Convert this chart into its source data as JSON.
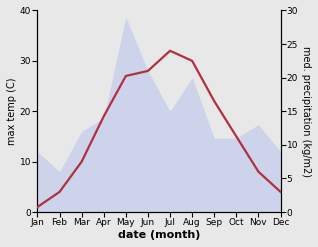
{
  "months": [
    "Jan",
    "Feb",
    "Mar",
    "Apr",
    "May",
    "Jun",
    "Jul",
    "Aug",
    "Sep",
    "Oct",
    "Nov",
    "Dec"
  ],
  "temp": [
    1,
    4,
    10,
    19,
    27,
    28,
    32,
    30,
    22,
    15,
    8,
    4
  ],
  "precip": [
    9,
    6,
    12,
    14,
    29,
    21,
    15,
    20,
    11,
    11,
    13,
    9
  ],
  "precip_fill_color": "#aabbee",
  "temp_color": "#b03040",
  "temp_ylim": [
    0,
    40
  ],
  "precip_ylim": [
    0,
    30
  ],
  "temp_yticks": [
    0,
    10,
    20,
    30,
    40
  ],
  "precip_yticks": [
    0,
    5,
    10,
    15,
    20,
    25,
    30
  ],
  "xlabel": "date (month)",
  "ylabel_left": "max temp (C)",
  "ylabel_right": "med. precipitation (kg/m2)",
  "label_fontsize": 7,
  "tick_fontsize": 6.5,
  "line_width": 1.6,
  "fill_alpha": 0.45,
  "bg_color": "#e8e8e8"
}
